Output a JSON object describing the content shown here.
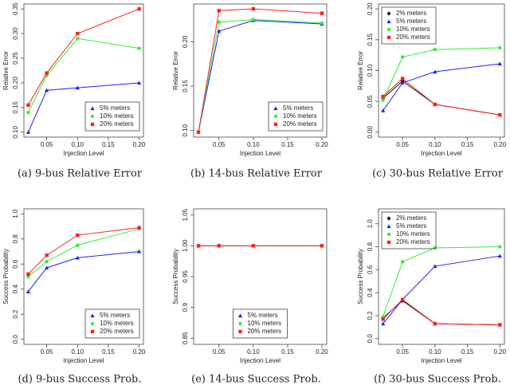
{
  "chart_data": [
    {
      "type": "line",
      "caption": "(a) 9-bus Relative Error",
      "x_label": "Injection Level",
      "y_label": "Relative Error",
      "x": [
        0.02,
        0.05,
        0.1,
        0.2
      ],
      "xlim": [
        0.013,
        0.207
      ],
      "xticks": [
        0.05,
        {
          "value": 0.1,
          "label": "0.10"
        },
        0.15,
        {
          "value": 0.2,
          "label": "0.20"
        }
      ],
      "ylim": [
        0.09,
        0.36
      ],
      "yticks": [
        {
          "value": 0.1,
          "label": "0.10"
        },
        0.15,
        {
          "value": 0.2,
          "label": "0.20"
        },
        0.25,
        {
          "value": 0.3,
          "label": "0.30"
        },
        0.35
      ],
      "legend": "bottom-right",
      "series": [
        {
          "name": "5% meters",
          "color": "#1f1fff",
          "marker": "triangle",
          "values": [
            0.1,
            0.185,
            0.19,
            0.2
          ]
        },
        {
          "name": "10% meters",
          "color": "#33ee33",
          "marker": "circle",
          "values": [
            0.14,
            0.215,
            0.29,
            0.27
          ]
        },
        {
          "name": "20% meters",
          "color": "#ff1f1f",
          "marker": "square",
          "values": [
            0.155,
            0.22,
            0.3,
            0.35
          ]
        }
      ]
    },
    {
      "type": "line",
      "caption": "(b) 14-bus Relative Error",
      "x_label": "Injection Level",
      "y_label": "Relative Error",
      "x": [
        0.02,
        0.05,
        0.1,
        0.2
      ],
      "xlim": [
        0.013,
        0.207
      ],
      "xticks": [
        0.05,
        {
          "value": 0.1,
          "label": "0.10"
        },
        0.15,
        {
          "value": 0.2,
          "label": "0.20"
        }
      ],
      "ylim": [
        0.0925,
        0.2425
      ],
      "yticks": [
        {
          "value": 0.1,
          "label": "0.10"
        },
        0.15,
        {
          "value": 0.2,
          "label": "0.20"
        }
      ],
      "legend": "bottom-right",
      "series": [
        {
          "name": "5% meters",
          "color": "#1f1fff",
          "marker": "triangle",
          "values": [
            0.098,
            0.212,
            0.224,
            0.22
          ]
        },
        {
          "name": "10% meters",
          "color": "#33ee33",
          "marker": "circle",
          "values": [
            0.098,
            0.222,
            0.225,
            0.221
          ]
        },
        {
          "name": "20% meters",
          "color": "#ff1f1f",
          "marker": "square",
          "values": [
            0.098,
            0.235,
            0.237,
            0.232
          ]
        }
      ]
    },
    {
      "type": "line",
      "caption": "(c) 30-bus Relative Error",
      "x_label": "Injection Level",
      "y_label": "Relative Error",
      "x": [
        0.02,
        0.05,
        0.1,
        0.2
      ],
      "xlim": [
        0.013,
        0.207
      ],
      "xticks": [
        0.05,
        {
          "value": 0.1,
          "label": "0.10"
        },
        0.15,
        {
          "value": 0.2,
          "label": "0.20"
        }
      ],
      "ylim": [
        -0.008,
        0.208
      ],
      "yticks": [
        {
          "value": 0,
          "label": "0.00"
        },
        0.05,
        {
          "value": 0.1,
          "label": "0.10"
        },
        0.15,
        {
          "value": 0.2,
          "label": "0.20"
        }
      ],
      "legend": "top-left",
      "series": [
        {
          "name": "2% meters",
          "color": "#111111",
          "marker": "diamond",
          "values": [
            0.055,
            0.083,
            0.045,
            0.028
          ]
        },
        {
          "name": "5% meters",
          "color": "#1f1fff",
          "marker": "triangle",
          "values": [
            0.035,
            0.08,
            0.098,
            0.111
          ]
        },
        {
          "name": "10% meters",
          "color": "#33ee33",
          "marker": "circle",
          "values": [
            0.052,
            0.122,
            0.134,
            0.137
          ]
        },
        {
          "name": "20% meters",
          "color": "#ff1f1f",
          "marker": "square",
          "values": [
            0.058,
            0.087,
            0.045,
            0.028
          ]
        }
      ]
    },
    {
      "type": "line",
      "caption": "(d) 9-bus Success Prob.",
      "x_label": "Injection Level",
      "y_label": "Success Probability",
      "x": [
        0.02,
        0.05,
        0.1,
        0.2
      ],
      "xlim": [
        0.013,
        0.207
      ],
      "xticks": [
        0.05,
        {
          "value": 0.1,
          "label": "0.10"
        },
        0.15,
        {
          "value": 0.2,
          "label": "0.20"
        }
      ],
      "ylim": [
        -0.04,
        1.04
      ],
      "yticks": [
        {
          "value": 0,
          "label": "0.0"
        },
        0.2,
        0.4,
        0.6,
        0.8,
        {
          "value": 1,
          "label": "1.0"
        }
      ],
      "legend": "bottom-right",
      "series": [
        {
          "name": "5% meters",
          "color": "#1f1fff",
          "marker": "triangle",
          "values": [
            0.38,
            0.57,
            0.65,
            0.7
          ]
        },
        {
          "name": "10% meters",
          "color": "#33ee33",
          "marker": "circle",
          "values": [
            0.5,
            0.62,
            0.75,
            0.88
          ]
        },
        {
          "name": "20% meters",
          "color": "#ff1f1f",
          "marker": "square",
          "values": [
            0.52,
            0.67,
            0.83,
            0.89
          ]
        }
      ]
    },
    {
      "type": "line",
      "caption": "(e) 14-bus Success Prob.",
      "x_label": "Injection Level",
      "y_label": "Success Probability",
      "x": [
        0.02,
        0.05,
        0.1,
        0.2
      ],
      "xlim": [
        0.013,
        0.207
      ],
      "xticks": [
        0.05,
        {
          "value": 0.1,
          "label": "0.10"
        },
        0.15,
        {
          "value": 0.2,
          "label": "0.20"
        }
      ],
      "ylim": [
        0.84,
        1.06
      ],
      "yticks": [
        0.85,
        0.9,
        0.95,
        {
          "value": 1,
          "label": "1.00"
        },
        1.05
      ],
      "legend": "bottom-center",
      "series": [
        {
          "name": "5% meters",
          "color": "#1f1fff",
          "marker": "triangle",
          "values": [
            1,
            1,
            1,
            1
          ]
        },
        {
          "name": "10% meters",
          "color": "#33ee33",
          "marker": "circle",
          "values": [
            1,
            1,
            1,
            1
          ]
        },
        {
          "name": "20% meters",
          "color": "#ff1f1f",
          "marker": "square",
          "values": [
            1,
            1,
            1,
            1
          ]
        }
      ]
    },
    {
      "type": "line",
      "caption": "(f) 30-bus Success Prob.",
      "x_label": "Injection Level",
      "y_label": "Success Probability",
      "x": [
        0.02,
        0.05,
        0.1,
        0.2
      ],
      "xlim": [
        0.013,
        0.207
      ],
      "xticks": [
        0.05,
        {
          "value": 0.1,
          "label": "0.10"
        },
        0.15,
        {
          "value": 0.2,
          "label": "0.20"
        }
      ],
      "ylim": [
        -0.05,
        1.13
      ],
      "yticks": [
        {
          "value": 0,
          "label": "0.0"
        },
        0.2,
        0.4,
        0.6,
        0.8,
        {
          "value": 1,
          "label": "1.0"
        }
      ],
      "legend": "top-left",
      "series": [
        {
          "name": "2% meters",
          "color": "#111111",
          "marker": "diamond",
          "values": [
            0.18,
            0.33,
            0.13,
            0.12
          ]
        },
        {
          "name": "5% meters",
          "color": "#1f1fff",
          "marker": "triangle",
          "values": [
            0.13,
            0.34,
            0.63,
            0.72
          ]
        },
        {
          "name": "10% meters",
          "color": "#33ee33",
          "marker": "circle",
          "values": [
            0.19,
            0.67,
            0.79,
            0.8
          ]
        },
        {
          "name": "20% meters",
          "color": "#ff1f1f",
          "marker": "square",
          "values": [
            0.17,
            0.34,
            0.13,
            0.12
          ]
        }
      ]
    }
  ]
}
